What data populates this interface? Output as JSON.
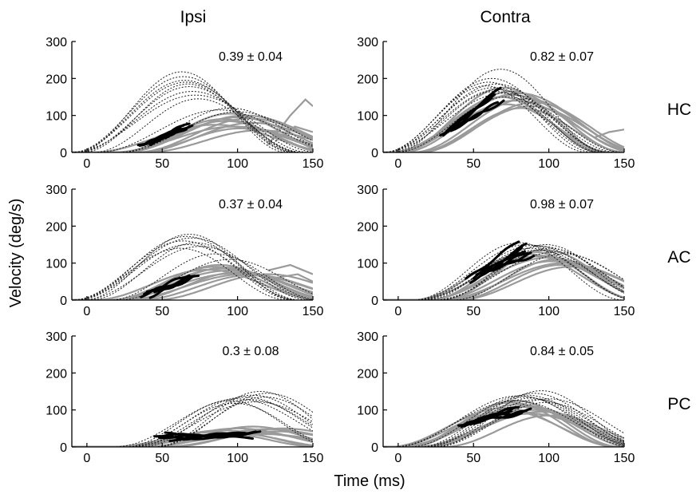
{
  "figure": {
    "column_titles": [
      "Ipsi",
      "Contra"
    ],
    "row_labels": [
      "HC",
      "AC",
      "PC"
    ],
    "ylabel": "Velocity (deg/s)",
    "xlabel": "Time (ms)"
  },
  "chart_data": [
    {
      "type": "line",
      "row": "HC",
      "column": "Ipsi",
      "annotation": "0.39 ± 0.04",
      "xlim": [
        -10,
        150
      ],
      "ylim": [
        0,
        300
      ],
      "xticks": [
        0,
        50,
        100,
        150
      ],
      "yticks": [
        0,
        100,
        200,
        300
      ],
      "dotted_peaks": [
        [
          63,
          218
        ],
        [
          64,
          205
        ],
        [
          65,
          195
        ],
        [
          66,
          190
        ],
        [
          67,
          185
        ],
        [
          68,
          178
        ],
        [
          70,
          165
        ],
        [
          72,
          155
        ],
        [
          74,
          145
        ],
        [
          95,
          120
        ],
        [
          100,
          110
        ],
        [
          88,
          115
        ]
      ],
      "gray_peaks": [
        [
          95,
          105
        ],
        [
          100,
          95
        ],
        [
          105,
          100
        ],
        [
          92,
          85
        ],
        [
          110,
          80
        ],
        [
          98,
          70
        ],
        [
          90,
          90
        ],
        [
          115,
          60
        ],
        [
          85,
          75
        ],
        [
          102,
          65
        ],
        [
          108,
          92
        ]
      ],
      "black_segments": [
        [
          35,
          68,
          20,
          70
        ],
        [
          40,
          66,
          22,
          66
        ],
        [
          38,
          64,
          20,
          72
        ],
        [
          45,
          68,
          25,
          80
        ],
        [
          42,
          62,
          24,
          62
        ],
        [
          34,
          70,
          18,
          76
        ]
      ],
      "extra_gray": [
        {
          "x": [
            120,
            135,
            145,
            150
          ],
          "y": [
            20,
            100,
            143,
            125
          ]
        },
        {
          "x": [
            125,
            138,
            150
          ],
          "y": [
            30,
            70,
            55
          ]
        }
      ]
    },
    {
      "type": "line",
      "row": "HC",
      "column": "Contra",
      "annotation": "0.82 ± 0.07",
      "xlim": [
        -10,
        150
      ],
      "ylim": [
        0,
        300
      ],
      "xticks": [
        0,
        50,
        100,
        150
      ],
      "yticks": [
        0,
        100,
        200,
        300
      ],
      "dotted_peaks": [
        [
          68,
          225
        ],
        [
          62,
          200
        ],
        [
          60,
          190
        ],
        [
          65,
          185
        ],
        [
          58,
          180
        ],
        [
          63,
          175
        ],
        [
          66,
          170
        ],
        [
          70,
          160
        ],
        [
          64,
          165
        ],
        [
          72,
          150
        ]
      ],
      "gray_peaks": [
        [
          70,
          175
        ],
        [
          75,
          165
        ],
        [
          80,
          160
        ],
        [
          68,
          150
        ],
        [
          85,
          145
        ],
        [
          78,
          140
        ],
        [
          72,
          130
        ],
        [
          88,
          125
        ],
        [
          76,
          155
        ],
        [
          82,
          120
        ],
        [
          90,
          135
        ]
      ],
      "black_segments": [
        [
          30,
          65,
          50,
          165
        ],
        [
          32,
          68,
          55,
          175
        ],
        [
          35,
          70,
          60,
          140
        ],
        [
          28,
          62,
          45,
          150
        ],
        [
          38,
          66,
          65,
          135
        ],
        [
          33,
          64,
          52,
          160
        ]
      ],
      "extra_gray": [
        {
          "x": [
            130,
            140,
            150
          ],
          "y": [
            40,
            55,
            62
          ]
        }
      ]
    },
    {
      "type": "line",
      "row": "AC",
      "column": "Ipsi",
      "annotation": "0.37 ± 0.04",
      "xlim": [
        -10,
        150
      ],
      "ylim": [
        0,
        300
      ],
      "xticks": [
        0,
        50,
        100,
        150
      ],
      "yticks": [
        0,
        100,
        200,
        300
      ],
      "dotted_peaks": [
        [
          68,
          178
        ],
        [
          66,
          172
        ],
        [
          70,
          168
        ],
        [
          64,
          160
        ],
        [
          72,
          155
        ],
        [
          67,
          150
        ],
        [
          75,
          145
        ],
        [
          62,
          140
        ],
        [
          85,
          125
        ],
        [
          95,
          110
        ]
      ],
      "gray_peaks": [
        [
          85,
          90
        ],
        [
          90,
          85
        ],
        [
          95,
          80
        ],
        [
          100,
          75
        ],
        [
          80,
          82
        ],
        [
          105,
          70
        ],
        [
          88,
          95
        ],
        [
          110,
          68
        ],
        [
          98,
          72
        ],
        [
          92,
          88
        ],
        [
          120,
          70
        ]
      ],
      "black_segments": [
        [
          38,
          72,
          15,
          65
        ],
        [
          42,
          70,
          10,
          60
        ],
        [
          40,
          68,
          20,
          70
        ],
        [
          36,
          66,
          12,
          58
        ],
        [
          45,
          74,
          18,
          68
        ]
      ],
      "extra_gray": [
        {
          "x": [
            120,
            135,
            150
          ],
          "y": [
            80,
            95,
            70
          ]
        },
        {
          "x": [
            125,
            140,
            150
          ],
          "y": [
            60,
            70,
            50
          ]
        }
      ]
    },
    {
      "type": "line",
      "row": "AC",
      "column": "Contra",
      "annotation": "0.98 ± 0.07",
      "xlim": [
        -10,
        150
      ],
      "ylim": [
        0,
        300
      ],
      "xticks": [
        0,
        50,
        100,
        150
      ],
      "yticks": [
        0,
        100,
        200,
        300
      ],
      "dotted_peaks": [
        [
          80,
          155
        ],
        [
          85,
          150
        ],
        [
          90,
          148
        ],
        [
          95,
          145
        ],
        [
          88,
          140
        ],
        [
          100,
          140
        ],
        [
          92,
          135
        ],
        [
          105,
          130
        ],
        [
          98,
          150
        ],
        [
          110,
          125
        ]
      ],
      "gray_peaks": [
        [
          90,
          130
        ],
        [
          95,
          120
        ],
        [
          100,
          115
        ],
        [
          105,
          110
        ],
        [
          85,
          125
        ],
        [
          110,
          100
        ],
        [
          98,
          135
        ],
        [
          102,
          105
        ],
        [
          92,
          118
        ],
        [
          108,
          95
        ],
        [
          115,
          90
        ]
      ],
      "black_segments": [
        [
          45,
          80,
          55,
          160
        ],
        [
          50,
          85,
          60,
          150
        ],
        [
          55,
          88,
          70,
          125
        ],
        [
          48,
          82,
          50,
          140
        ],
        [
          60,
          90,
          80,
          120
        ],
        [
          52,
          84,
          65,
          135
        ],
        [
          58,
          86,
          75,
          130
        ]
      ],
      "extra_gray": []
    },
    {
      "type": "line",
      "row": "PC",
      "column": "Ipsi",
      "annotation": "0.3 ± 0.08",
      "xlim": [
        -10,
        150
      ],
      "ylim": [
        0,
        300
      ],
      "xticks": [
        0,
        50,
        100,
        150
      ],
      "yticks": [
        0,
        100,
        200,
        300
      ],
      "dotted_peaks": [
        [
          115,
          150
        ],
        [
          110,
          140
        ],
        [
          105,
          135
        ],
        [
          100,
          130
        ],
        [
          95,
          125
        ],
        [
          120,
          145
        ],
        [
          108,
          128
        ],
        [
          112,
          122
        ],
        [
          98,
          118
        ],
        [
          118,
          135
        ]
      ],
      "gray_peaks": [
        [
          110,
          55
        ],
        [
          100,
          50
        ],
        [
          120,
          48
        ],
        [
          90,
          45
        ],
        [
          130,
          50
        ],
        [
          105,
          40
        ],
        [
          95,
          38
        ],
        [
          125,
          42
        ],
        [
          115,
          35
        ],
        [
          85,
          40
        ]
      ],
      "black_segments": [
        [
          45,
          110,
          25,
          25
        ],
        [
          50,
          105,
          30,
          35
        ],
        [
          55,
          115,
          20,
          38
        ],
        [
          48,
          100,
          28,
          30
        ],
        [
          60,
          112,
          22,
          42
        ],
        [
          52,
          108,
          35,
          28
        ]
      ],
      "extra_gray": []
    },
    {
      "type": "line",
      "row": "PC",
      "column": "Contra",
      "annotation": "0.84 ± 0.05",
      "xlim": [
        -10,
        150
      ],
      "ylim": [
        0,
        300
      ],
      "xticks": [
        0,
        50,
        100,
        150
      ],
      "yticks": [
        0,
        100,
        200,
        300
      ],
      "dotted_peaks": [
        [
          95,
          152
        ],
        [
          90,
          145
        ],
        [
          85,
          140
        ],
        [
          80,
          138
        ],
        [
          88,
          132
        ],
        [
          92,
          128
        ],
        [
          100,
          130
        ],
        [
          78,
          125
        ],
        [
          84,
          135
        ],
        [
          98,
          120
        ]
      ],
      "gray_peaks": [
        [
          75,
          120
        ],
        [
          80,
          115
        ],
        [
          85,
          110
        ],
        [
          90,
          100
        ],
        [
          70,
          105
        ],
        [
          95,
          95
        ],
        [
          78,
          125
        ],
        [
          88,
          90
        ],
        [
          82,
          108
        ],
        [
          100,
          85
        ],
        [
          72,
          98
        ]
      ],
      "black_segments": [
        [
          40,
          75,
          55,
          100
        ],
        [
          45,
          80,
          60,
          110
        ],
        [
          50,
          85,
          70,
          95
        ],
        [
          42,
          78,
          58,
          105
        ],
        [
          48,
          82,
          65,
          90
        ],
        [
          55,
          88,
          75,
          100
        ]
      ],
      "extra_gray": []
    }
  ]
}
